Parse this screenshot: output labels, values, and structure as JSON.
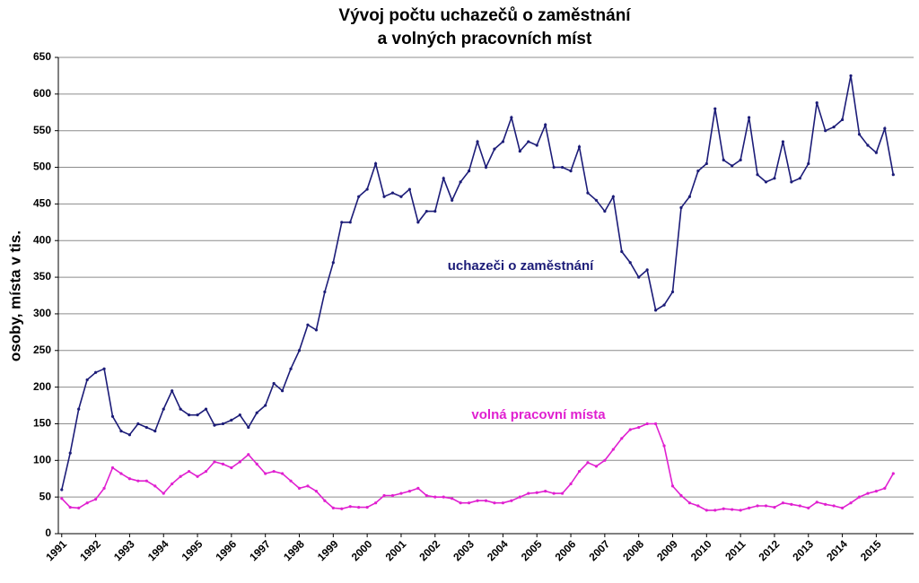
{
  "chart_data": {
    "type": "line",
    "title": [
      "Vývoj počtu uchazečů o zaměstnání",
      "a volných pracovních míst"
    ],
    "y_label": "osoby, místa v tis.",
    "x": [
      1991,
      1991.25,
      1991.5,
      1991.75,
      1992,
      1992.25,
      1992.5,
      1992.75,
      1993,
      1993.25,
      1993.5,
      1993.75,
      1994,
      1994.25,
      1994.5,
      1994.75,
      1995,
      1995.25,
      1995.5,
      1995.75,
      1996,
      1996.25,
      1996.5,
      1996.75,
      1997,
      1997.25,
      1997.5,
      1997.75,
      1998,
      1998.25,
      1998.5,
      1998.75,
      1999,
      1999.25,
      1999.5,
      1999.75,
      2000,
      2000.25,
      2000.5,
      2000.75,
      2001,
      2001.25,
      2001.5,
      2001.75,
      2002,
      2002.25,
      2002.5,
      2002.75,
      2003,
      2003.25,
      2003.5,
      2003.75,
      2004,
      2004.25,
      2004.5,
      2004.75,
      2005,
      2005.25,
      2005.5,
      2005.75,
      2006,
      2006.25,
      2006.5,
      2006.75,
      2007,
      2007.25,
      2007.5,
      2007.75,
      2008,
      2008.25,
      2008.5,
      2008.75,
      2009,
      2009.25,
      2009.5,
      2009.75,
      2010,
      2010.25,
      2010.5,
      2010.75,
      2011,
      2011.25,
      2011.5,
      2011.75,
      2012,
      2012.25,
      2012.5,
      2012.75,
      2013,
      2013.25,
      2013.5,
      2013.75,
      2014,
      2014.25,
      2014.5,
      2014.75,
      2015,
      2015.25,
      2015.5
    ],
    "series": [
      {
        "name": "uchazeči o zaměstnání",
        "color": "#1c1c78",
        "values": [
          60,
          110,
          170,
          210,
          220,
          225,
          160,
          140,
          135,
          150,
          145,
          140,
          170,
          195,
          170,
          162,
          162,
          170,
          148,
          150,
          155,
          162,
          145,
          165,
          175,
          205,
          195,
          225,
          250,
          285,
          278,
          330,
          370,
          425,
          425,
          460,
          470,
          505,
          460,
          465,
          460,
          470,
          425,
          440,
          440,
          485,
          455,
          480,
          495,
          535,
          500,
          525,
          535,
          568,
          522,
          535,
          530,
          558,
          500,
          500,
          495,
          528,
          465,
          455,
          440,
          460,
          385,
          370,
          350,
          360,
          305,
          312,
          330,
          445,
          460,
          495,
          505,
          580,
          510,
          502,
          510,
          568,
          490,
          480,
          485,
          535,
          480,
          485,
          505,
          588,
          550,
          555,
          565,
          625,
          545,
          530,
          520,
          553,
          490
        ]
      },
      {
        "name": "volná pracovní místa",
        "color": "#e020d0",
        "values": [
          48,
          36,
          35,
          42,
          47,
          62,
          90,
          82,
          75,
          72,
          72,
          65,
          55,
          68,
          78,
          85,
          78,
          85,
          98,
          95,
          90,
          98,
          108,
          95,
          82,
          85,
          82,
          72,
          62,
          65,
          58,
          45,
          35,
          34,
          37,
          36,
          36,
          42,
          52,
          52,
          55,
          58,
          62,
          52,
          50,
          50,
          48,
          42,
          42,
          45,
          45,
          42,
          42,
          45,
          50,
          55,
          56,
          58,
          55,
          55,
          68,
          85,
          97,
          92,
          100,
          115,
          130,
          142,
          145,
          150,
          150,
          120,
          65,
          52,
          42,
          38,
          32,
          32,
          34,
          33,
          32,
          35,
          38,
          38,
          36,
          42,
          40,
          38,
          35,
          43,
          40,
          38,
          35,
          42,
          50,
          55,
          58,
          62,
          82
        ]
      }
    ],
    "xlim": [
      1990.9,
      2016.1
    ],
    "xticks": [
      1991,
      1992,
      1993,
      1994,
      1995,
      1996,
      1997,
      1998,
      1999,
      2000,
      2001,
      2002,
      2003,
      2004,
      2005,
      2006,
      2007,
      2008,
      2009,
      2010,
      2011,
      2012,
      2013,
      2014,
      2015
    ],
    "ylim": [
      0,
      650
    ],
    "yticks": [
      0,
      50,
      100,
      150,
      200,
      250,
      300,
      350,
      400,
      450,
      500,
      550,
      600,
      650
    ],
    "grid": true
  }
}
